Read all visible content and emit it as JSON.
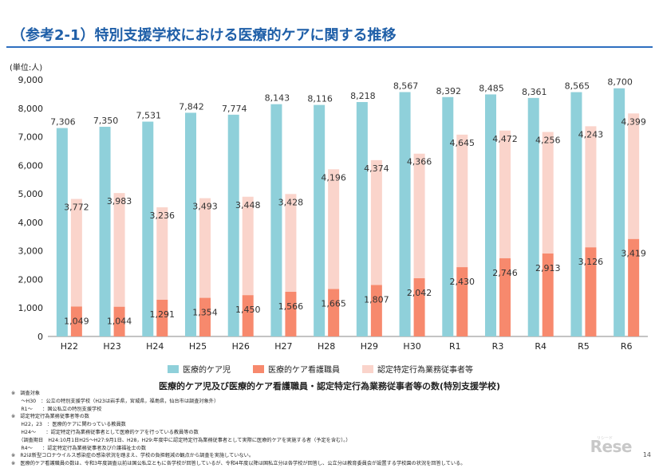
{
  "title": "（参考2-1）特別支援学校における医療的ケアに関する推移",
  "subtitle": "医療的ケア児及び医療的ケア看護職員・認定特定行為業務従事者等の数(特別支援学校)",
  "page_number": "14",
  "watermark": "Rese",
  "watermark_sub": "リシード",
  "colors": {
    "child": "#8fd0da",
    "nurse": "#f7896d",
    "staff": "#fad4cb",
    "title": "#1f5fa8"
  },
  "chart_data": {
    "type": "bar",
    "ylabel": "(単位:人)",
    "ylim": [
      0,
      9000
    ],
    "yticks": [
      0,
      1000,
      2000,
      3000,
      4000,
      5000,
      6000,
      7000,
      8000,
      9000
    ],
    "ytick_labels": [
      "0",
      "1,000",
      "2,000",
      "3,000",
      "4,000",
      "5,000",
      "6,000",
      "7,000",
      "8,000",
      "9,000"
    ],
    "categories": [
      "H22",
      "H23",
      "H24",
      "H25",
      "H26",
      "H27",
      "H28",
      "H29",
      "H30",
      "R1",
      "R3",
      "R4",
      "R5",
      "R6"
    ],
    "series": [
      {
        "name": "医療的ケア児",
        "values": [
          7306,
          7350,
          7531,
          7842,
          7774,
          8143,
          8116,
          8218,
          8567,
          8392,
          8485,
          8361,
          8565,
          8700
        ],
        "labels": [
          "7,306",
          "7,350",
          "7,531",
          "7,842",
          "7,774",
          "8,143",
          "8,116",
          "8,218",
          "8,567",
          "8,392",
          "8,485",
          "8,361",
          "8,565",
          "8,700"
        ]
      },
      {
        "name": "医療的ケア看護職員",
        "values": [
          1049,
          1044,
          1291,
          1354,
          1450,
          1566,
          1665,
          1807,
          2042,
          2430,
          2746,
          2913,
          3126,
          3419
        ],
        "labels": [
          "1,049",
          "1,044",
          "1,291",
          "1,354",
          "1,450",
          "1,566",
          "1,665",
          "1,807",
          "2,042",
          "2,430",
          "2,746",
          "2,913",
          "3,126",
          "3,419"
        ]
      },
      {
        "name": "認定特定行為業務従事者等",
        "values": [
          3772,
          3983,
          3236,
          3493,
          3448,
          3428,
          4196,
          4374,
          4366,
          4645,
          4472,
          4256,
          4243,
          4399
        ],
        "labels": [
          "3,772",
          "3,983",
          "3,236",
          "3,493",
          "3,448",
          "3,428",
          "4,196",
          "4,374",
          "4,366",
          "4,645",
          "4,472",
          "4,256",
          "4,243",
          "4,399"
        ]
      }
    ]
  },
  "notes": [
    "※　調査対象",
    "　　～H30　：公立の特別支援学校（H23は岩手県，宮城県，福島県，仙台市は調査対象外）",
    "　　R1～　　：国公私立の特別支援学校",
    "※　認定特定行為業務従事者等の数",
    "　　H22，23　：医療的ケアに関わっている教員数",
    "　　H24～　　：認定特定行為業務従事者として医療的ケアを行っている教員等の数",
    "　　（調査期日　H24:10月1日H25～H27:9月1日、H28，H29:年度中に認定特定行為業務従事者として実際に医療的ケアを実施する者（予定を含む）。）",
    "　　R4～　　：認定特定行為業務従事者及び介護福祉士の数",
    "※　R2は新型コロナウイルス感染症の感染状況を踏まえ、学校の負担軽減の観点から調査を実施していない。",
    "※　医療的ケア看護職員の数は、令和3年度調査以前は国公私立ともに各学校が回答しているが、令和4年度以降は国私立分は各学校が回答し、公立分は教育委員会が設置する学校園の状況を回答している。"
  ]
}
